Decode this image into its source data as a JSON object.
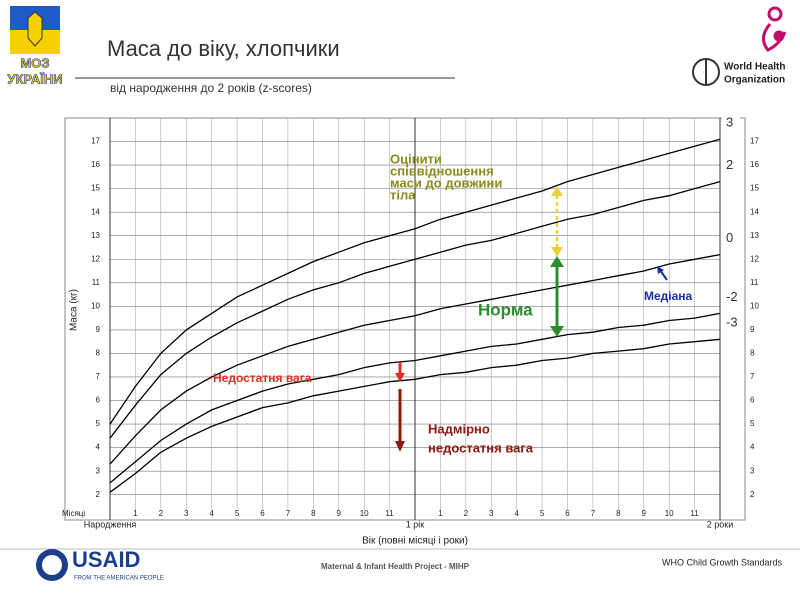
{
  "header": {
    "ministry": "МОЗ",
    "ministry_line2": "УКРАЇНИ",
    "who": "World Health",
    "who_line2": "Organization"
  },
  "chart_data": {
    "type": "line",
    "title": "Маса до віку, хлопчики",
    "subtitle": "від народження до 2 років (z-scores)",
    "ylabel": "Маса (кг)",
    "xlabel": "Вік (повні місяці і роки)",
    "x_row_label": "Місяці",
    "x": [
      0,
      1,
      2,
      3,
      4,
      5,
      6,
      7,
      8,
      9,
      10,
      11,
      12,
      13,
      14,
      15,
      16,
      17,
      18,
      19,
      20,
      21,
      22,
      23,
      24
    ],
    "series": [
      {
        "name": "3",
        "color": "#000000",
        "values": [
          5.0,
          6.6,
          8.0,
          9.0,
          9.7,
          10.4,
          10.9,
          11.4,
          11.9,
          12.3,
          12.7,
          13.0,
          13.3,
          13.7,
          14.0,
          14.3,
          14.6,
          14.9,
          15.3,
          15.6,
          15.9,
          16.2,
          16.5,
          16.8,
          17.1
        ]
      },
      {
        "name": "2",
        "color": "#000000",
        "values": [
          4.4,
          5.8,
          7.1,
          8.0,
          8.7,
          9.3,
          9.8,
          10.3,
          10.7,
          11.0,
          11.4,
          11.7,
          12.0,
          12.3,
          12.6,
          12.8,
          13.1,
          13.4,
          13.7,
          13.9,
          14.2,
          14.5,
          14.7,
          15.0,
          15.3
        ]
      },
      {
        "name": "0",
        "color": "#000000",
        "values": [
          3.3,
          4.5,
          5.6,
          6.4,
          7.0,
          7.5,
          7.9,
          8.3,
          8.6,
          8.9,
          9.2,
          9.4,
          9.6,
          9.9,
          10.1,
          10.3,
          10.5,
          10.7,
          10.9,
          11.1,
          11.3,
          11.5,
          11.8,
          12.0,
          12.2
        ]
      },
      {
        "name": "-2",
        "color": "#000000",
        "values": [
          2.5,
          3.4,
          4.3,
          5.0,
          5.6,
          6.0,
          6.4,
          6.7,
          6.9,
          7.1,
          7.4,
          7.6,
          7.7,
          7.9,
          8.1,
          8.3,
          8.4,
          8.6,
          8.8,
          8.9,
          9.1,
          9.2,
          9.4,
          9.5,
          9.7
        ]
      },
      {
        "name": "-3",
        "color": "#000000",
        "values": [
          2.1,
          2.9,
          3.8,
          4.4,
          4.9,
          5.3,
          5.7,
          5.9,
          6.2,
          6.4,
          6.6,
          6.8,
          6.9,
          7.1,
          7.2,
          7.4,
          7.5,
          7.7,
          7.8,
          8.0,
          8.1,
          8.2,
          8.4,
          8.5,
          8.6
        ]
      }
    ],
    "xlim": [
      0,
      24
    ],
    "ylim": [
      1.35,
      18
    ],
    "yticks": [
      2,
      3,
      4,
      5,
      6,
      7,
      8,
      9,
      10,
      11,
      12,
      13,
      14,
      15,
      16,
      17
    ],
    "xticks": [
      1,
      2,
      3,
      4,
      5,
      6,
      7,
      8,
      9,
      10,
      11,
      {
        "value": 13,
        "label": "1"
      },
      {
        "value": 14,
        "label": "2"
      },
      {
        "value": 15,
        "label": "3"
      },
      {
        "value": 16,
        "label": "4"
      },
      {
        "value": 17,
        "label": "5"
      },
      {
        "value": 18,
        "label": "6"
      },
      {
        "value": 19,
        "label": "7"
      },
      {
        "value": 20,
        "label": "8"
      },
      {
        "value": 21,
        "label": "9"
      },
      {
        "value": 22,
        "label": "10"
      },
      {
        "value": 23,
        "label": "11"
      }
    ],
    "year_ticks": [
      {
        "value": 0,
        "label": "Народження"
      },
      {
        "value": 12,
        "label": "1 рік"
      },
      {
        "value": 24,
        "label": "2 роки"
      }
    ],
    "grid": true,
    "annotations": [
      {
        "lines": [
          "Оцінити",
          "співвідношення",
          "маси до довжини",
          "тіла"
        ],
        "color": "#8a8a1e"
      },
      {
        "lines": [
          "Норма"
        ],
        "color": "#2e8b2e"
      },
      {
        "lines": [
          "Медіана"
        ],
        "color": "#1a2ea8"
      },
      {
        "lines": [
          "Недостатня вага"
        ],
        "color": "#e03020"
      },
      {
        "lines": [
          "Надмірно",
          "недостатня вага"
        ],
        "color": "#8b1a10"
      }
    ]
  },
  "footer": {
    "usaid": "USAID",
    "usaid_sub": "FROM THE AMERICAN PEOPLE",
    "project": "Maternal & Infant Health Project - MIHP",
    "standards": "WHO Child Growth Standards"
  }
}
